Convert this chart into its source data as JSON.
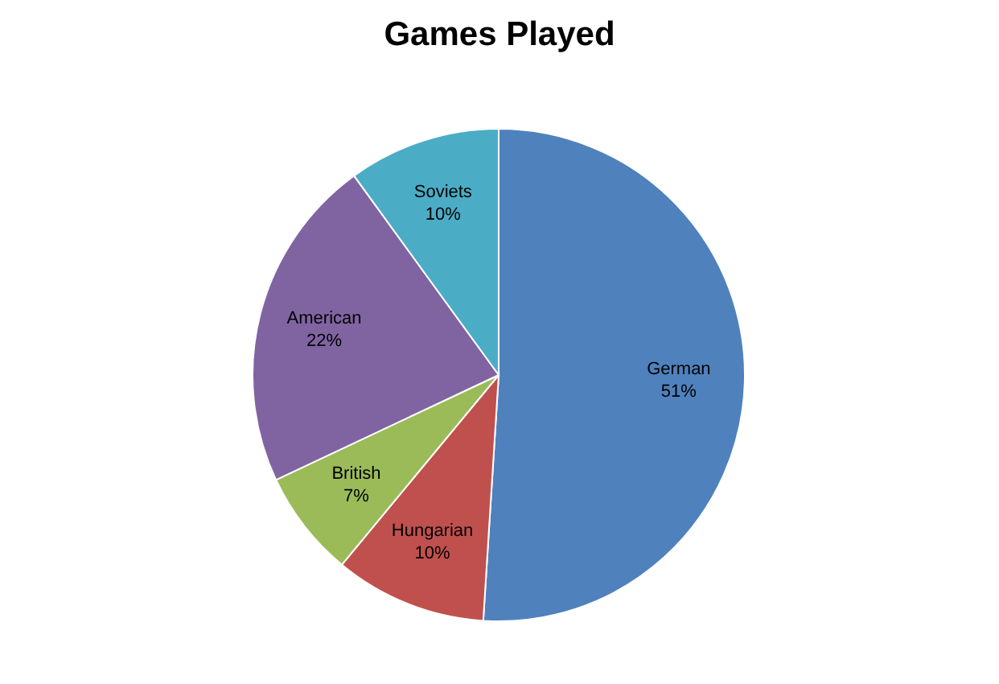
{
  "chart_data": {
    "type": "pie",
    "title": "Games Played",
    "categories": [
      "German",
      "Hungarian",
      "British",
      "American",
      "Soviets"
    ],
    "values": [
      51,
      10,
      7,
      22,
      10
    ],
    "colors": [
      "#4f81bd",
      "#c0504d",
      "#9bbb59",
      "#8064a2",
      "#4bacc6"
    ],
    "value_labels": [
      "51%",
      "10%",
      "7%",
      "22%",
      "10%"
    ],
    "legend": false
  }
}
